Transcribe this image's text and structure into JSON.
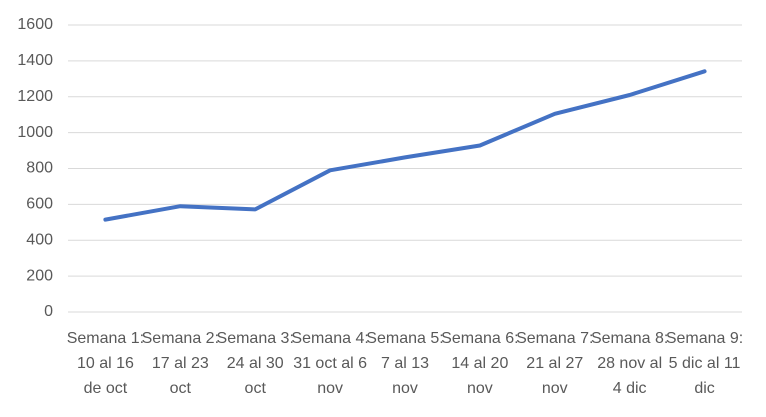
{
  "chart_data": {
    "type": "line",
    "categories": [
      "Semana 1: 10 al 16 de oct",
      "Semana 2: 17 al 23 oct",
      "Semana 3: 24 al 30 oct",
      "Semana 4: 31 oct al 6 nov",
      "Semana 5: 7 al 13 nov",
      "Semana 6: 14 al 20 nov",
      "Semana 7: 21 al 27 nov",
      "Semana 8: 28 nov al 4 dic",
      "Semana 9: 5 dic al 11 dic"
    ],
    "values": [
      515,
      590,
      572,
      790,
      862,
      928,
      1105,
      1210,
      1342
    ],
    "color": "#4472c4",
    "ylim": [
      0,
      1600
    ],
    "yticks": [
      0,
      200,
      400,
      600,
      800,
      1000,
      1200,
      1400,
      1600
    ],
    "grid": true
  }
}
